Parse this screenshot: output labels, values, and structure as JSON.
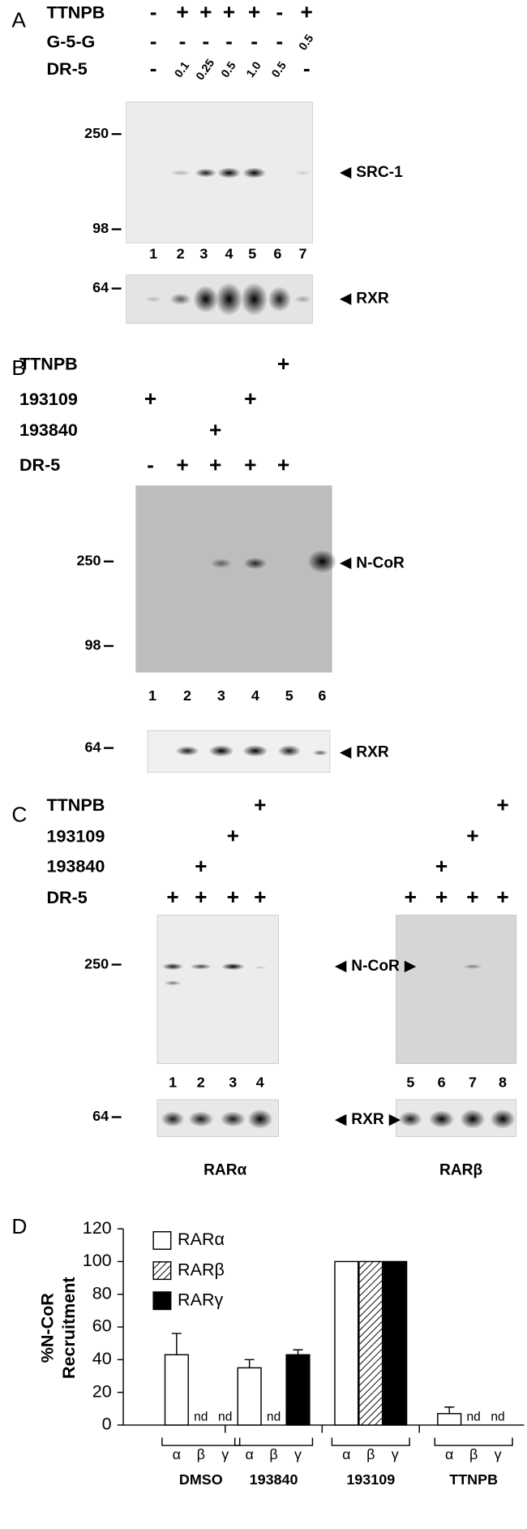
{
  "panels": [
    {
      "label": "A",
      "rows": [
        {
          "name": "TTNPB",
          "marks": [
            "-",
            "+",
            "+",
            "+",
            "+",
            "-",
            "+"
          ]
        },
        {
          "name": "G-5-G",
          "marks": [
            "-",
            "-",
            "-",
            "-",
            "-",
            "-",
            "0.5"
          ]
        },
        {
          "name": "DR-5",
          "marks": [
            "-",
            "0.1",
            "0.25",
            "0.5",
            "1.0",
            "0.5",
            "-"
          ]
        }
      ],
      "markers": [
        "250",
        "98"
      ],
      "target": "SRC-1",
      "lanes": [
        "1",
        "2",
        "3",
        "4",
        "5",
        "6",
        "7"
      ],
      "loading": {
        "marker": "64",
        "target": "RXR"
      }
    },
    {
      "label": "B",
      "rows": [
        {
          "name": "TTNPB",
          "marks": [
            null,
            null,
            null,
            null,
            "+"
          ]
        },
        {
          "name": "193109",
          "marks": [
            "+",
            null,
            null,
            "+",
            null
          ]
        },
        {
          "name": "193840",
          "marks": [
            null,
            null,
            "+",
            null,
            null
          ]
        },
        {
          "name": "DR-5",
          "marks": [
            "-",
            "+",
            "+",
            "+",
            "+"
          ]
        }
      ],
      "markers": [
        "250",
        "98"
      ],
      "target": "N-CoR",
      "lanes": [
        "1",
        "2",
        "3",
        "4",
        "5",
        "6"
      ],
      "loading": {
        "marker": "64",
        "target": "RXR"
      }
    },
    {
      "label": "C",
      "rows": [
        {
          "name": "TTNPB",
          "marks": [
            null,
            null,
            null,
            "+",
            null,
            null,
            null,
            "+"
          ]
        },
        {
          "name": "193109",
          "marks": [
            null,
            null,
            "+",
            null,
            null,
            null,
            "+",
            null
          ]
        },
        {
          "name": "193840",
          "marks": [
            null,
            "+",
            null,
            null,
            null,
            "+",
            null,
            null
          ]
        },
        {
          "name": "DR-5",
          "marks": [
            "+",
            "+",
            "+",
            "+",
            "+",
            "+",
            "+",
            "+"
          ]
        }
      ],
      "markers": [
        "250"
      ],
      "target": "N-CoR",
      "lanes": [
        "1",
        "2",
        "3",
        "4",
        "5",
        "6",
        "7",
        "8"
      ],
      "loading": {
        "marker": "64",
        "target": "RXR"
      },
      "receptors": [
        "RARα",
        "RARβ"
      ]
    }
  ],
  "chart_data": {
    "type": "bar",
    "label": "D",
    "ylabel": [
      "%N-CoR",
      "Recruitment"
    ],
    "categories": [
      "DMSO",
      "193840",
      "193109",
      "TTNPB"
    ],
    "sublabels": [
      "α",
      "β",
      "γ"
    ],
    "ylim": [
      0,
      120
    ],
    "yticks": [
      0,
      20,
      40,
      60,
      80,
      100,
      120
    ],
    "series": [
      {
        "name": "RARα",
        "color": "#ffffff",
        "values": [
          43,
          35,
          100,
          7
        ],
        "errors": [
          13,
          5,
          null,
          4
        ]
      },
      {
        "name": "RARβ",
        "color": "#ffffff",
        "pattern": "hatch",
        "values": [
          null,
          null,
          100,
          null
        ],
        "value_labels": [
          "nd",
          "nd",
          null,
          "nd"
        ]
      },
      {
        "name": "RARγ",
        "color": "#000000",
        "values": [
          null,
          43,
          100,
          null
        ],
        "errors": [
          null,
          3,
          null,
          null
        ],
        "value_labels": [
          "nd",
          null,
          null,
          "nd"
        ]
      }
    ]
  }
}
